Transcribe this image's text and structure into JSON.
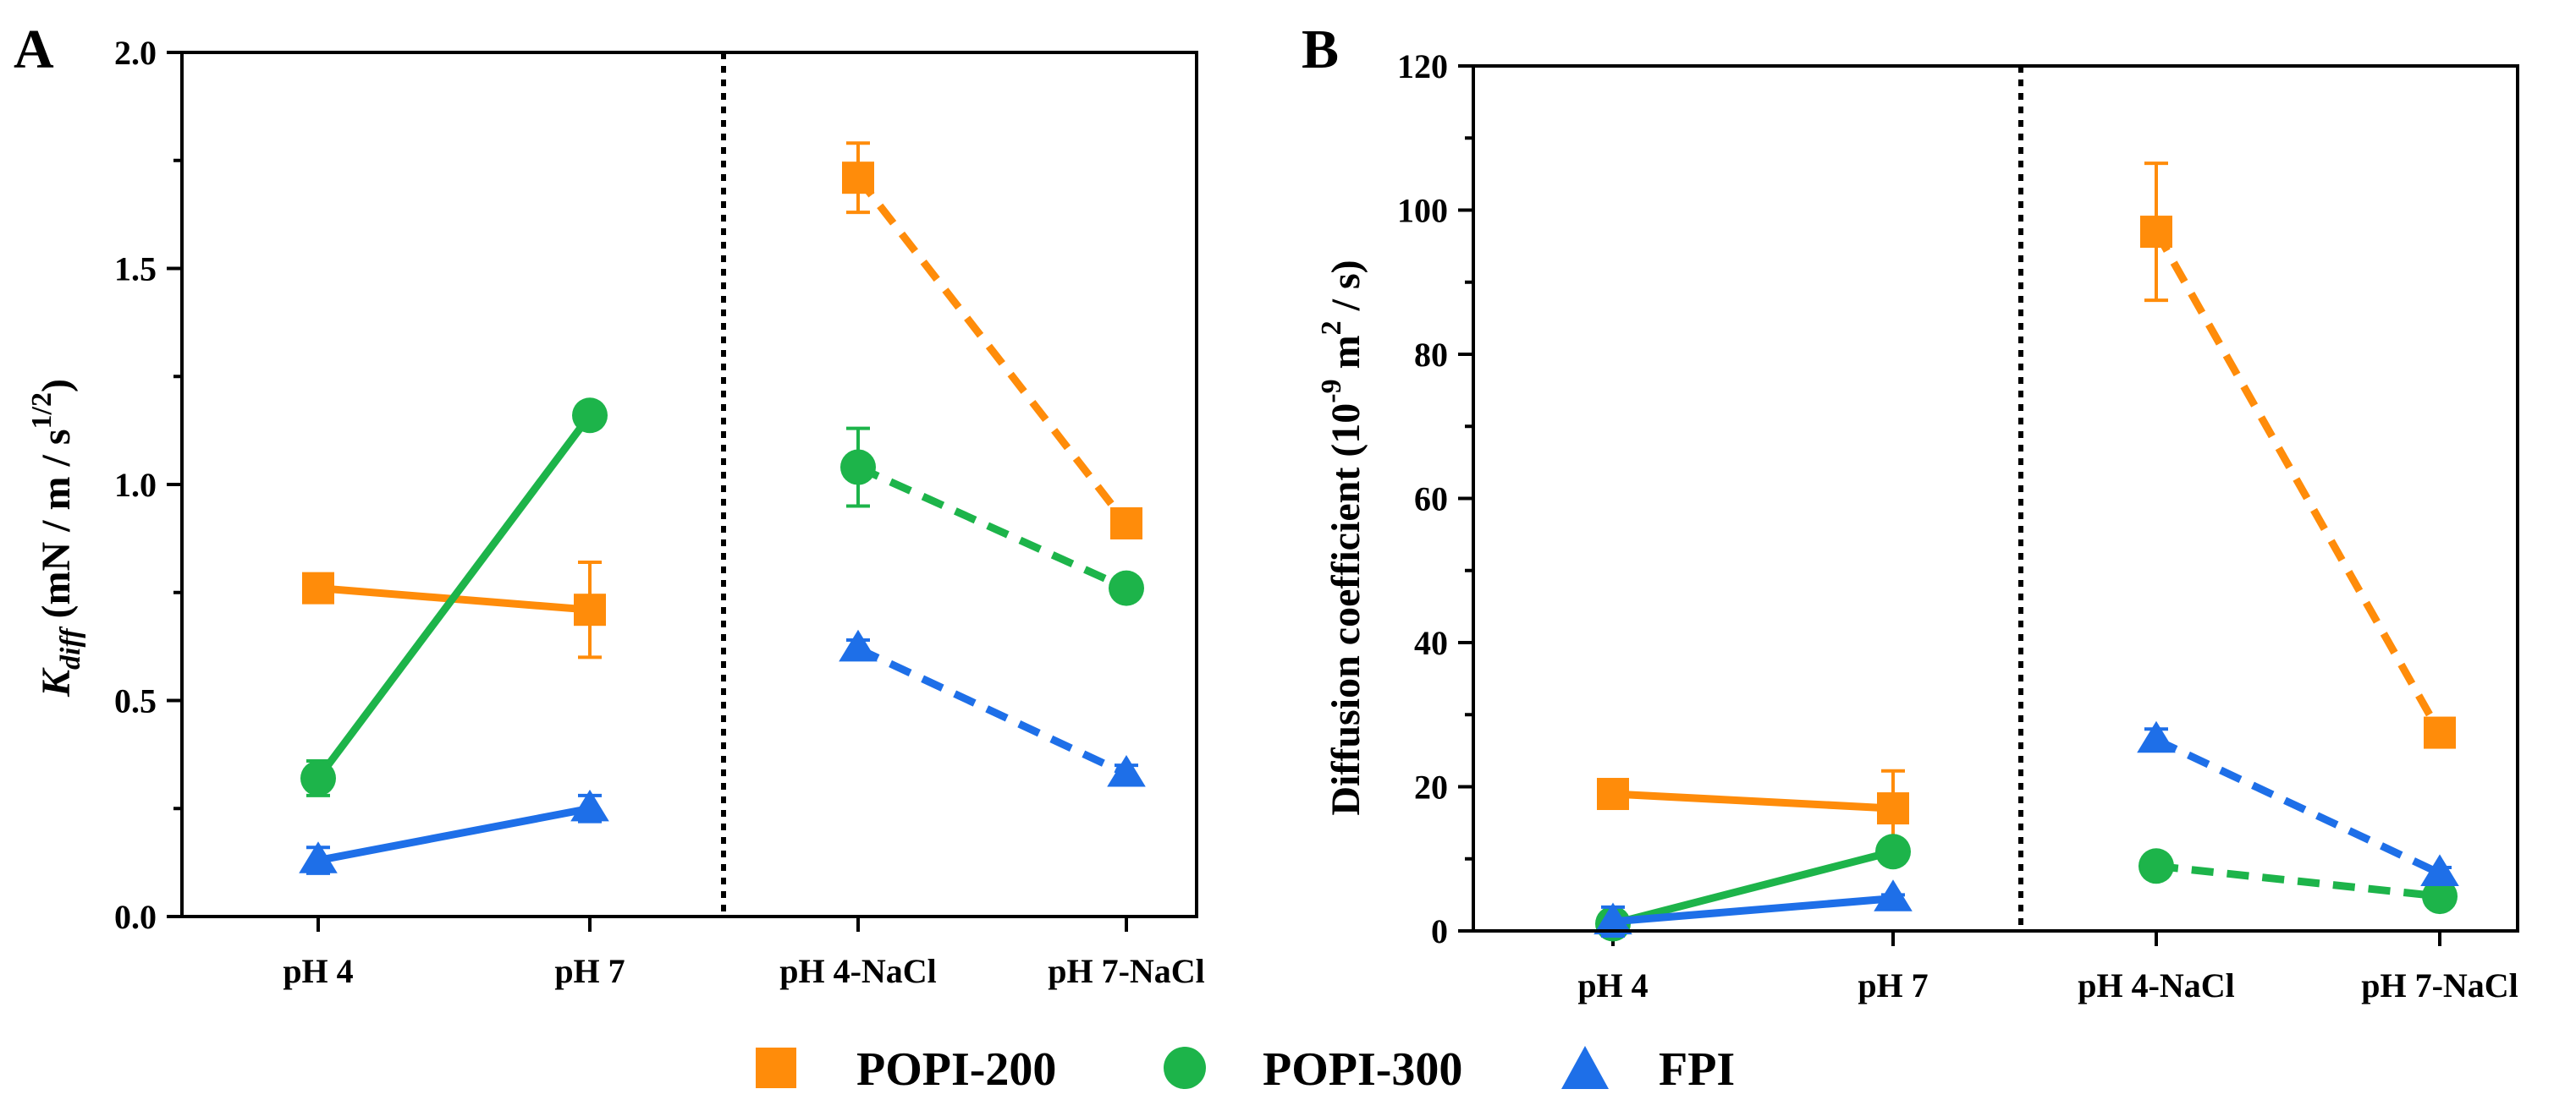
{
  "colors": {
    "popi200": "#FF8C0A",
    "popi300": "#1DB44A",
    "fpi": "#1E6FE8",
    "axis": "#000000"
  },
  "chart_data": [
    {
      "type": "line",
      "panel_label": "A",
      "ylabel": "K",
      "ylabel_subscript": "diff",
      "ylabel_units": " (mN / m / s",
      "ylabel_superscript": "1/2",
      "ylabel_close": ")",
      "ylim": [
        0,
        2.0
      ],
      "yticks": [
        0.0,
        0.5,
        1.0,
        1.5,
        2.0
      ],
      "ytick_labels": [
        "0.0",
        "0.5",
        "1.0",
        "1.5",
        "2.0"
      ],
      "categories": [
        "pH 4",
        "pH 7",
        "pH 4-NaCl",
        "pH 7-NaCl"
      ],
      "series": [
        {
          "name": "POPI-200",
          "marker": "square",
          "values": [
            0.76,
            0.71,
            1.71,
            0.91
          ],
          "errors": [
            0.02,
            0.11,
            0.08,
            0.03
          ]
        },
        {
          "name": "POPI-300",
          "marker": "circle",
          "values": [
            0.32,
            1.16,
            1.04,
            0.76
          ],
          "errors": [
            0.04,
            0.02,
            0.09,
            0.02
          ]
        },
        {
          "name": "FPI",
          "marker": "triangle",
          "values": [
            0.13,
            0.25,
            0.62,
            0.33
          ],
          "errors": [
            0.03,
            0.03,
            0.02,
            0.02
          ]
        }
      ]
    },
    {
      "type": "line",
      "panel_label": "B",
      "ylabel_pre": "Diffusion coefficient (10",
      "ylabel_sup1": "-9",
      "ylabel_mid": " m",
      "ylabel_sup2": "2",
      "ylabel_post": " / s)",
      "ylim": [
        0,
        120
      ],
      "yticks": [
        0,
        20,
        40,
        60,
        80,
        100,
        120
      ],
      "ytick_labels": [
        "0",
        "20",
        "40",
        "60",
        "80",
        "100",
        "120"
      ],
      "categories": [
        "pH 4",
        "pH 7",
        "pH 4-NaCl",
        "pH 7-NaCl"
      ],
      "series": [
        {
          "name": "POPI-200",
          "marker": "square",
          "values": [
            19.0,
            17.0,
            97.0,
            27.5
          ],
          "errors": [
            0.5,
            5.2,
            9.5,
            1.5
          ]
        },
        {
          "name": "POPI-300",
          "marker": "circle",
          "values": [
            1.0,
            11.0,
            9.0,
            4.8
          ],
          "errors": [
            0.3,
            0.8,
            0.5,
            0.4
          ]
        },
        {
          "name": "FPI",
          "marker": "triangle",
          "values": [
            1.3,
            4.5,
            26.5,
            8.0
          ],
          "errors": [
            2.0,
            0.5,
            1.5,
            0.8
          ]
        }
      ]
    }
  ],
  "legend": {
    "items": [
      {
        "label": "POPI-200",
        "marker": "square"
      },
      {
        "label": "POPI-300",
        "marker": "circle"
      },
      {
        "label": "FPI",
        "marker": "triangle"
      }
    ]
  }
}
